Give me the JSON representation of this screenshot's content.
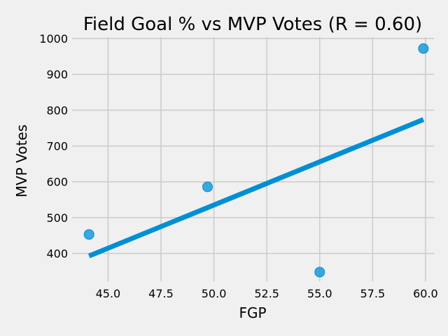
{
  "chart_data": {
    "type": "scatter",
    "title": "Field Goal % vs MVP Votes (R = 0.60)",
    "xlabel": "FGP",
    "ylabel": "MVP Votes",
    "xlim": [
      43.3,
      60.4
    ],
    "ylim": [
      322,
      1004
    ],
    "xticks": [
      "45.0",
      "47.5",
      "50.0",
      "52.5",
      "55.0",
      "57.5",
      "60.0"
    ],
    "yticks": [
      "400",
      "500",
      "600",
      "700",
      "800",
      "900",
      "1000"
    ],
    "grid": true,
    "series": [
      {
        "type": "scatter",
        "points": [
          {
            "x": 44.1,
            "y": 453
          },
          {
            "x": 49.7,
            "y": 586
          },
          {
            "x": 55.0,
            "y": 348
          },
          {
            "x": 59.9,
            "y": 972
          }
        ]
      },
      {
        "type": "line",
        "points": [
          {
            "x": 44.1,
            "y": 393
          },
          {
            "x": 59.9,
            "y": 774
          }
        ]
      }
    ],
    "colors": {
      "scatter": "#008fd5",
      "line": "#008fd5",
      "grid": "#cbcbcb",
      "background": "#f0f0f0"
    }
  }
}
